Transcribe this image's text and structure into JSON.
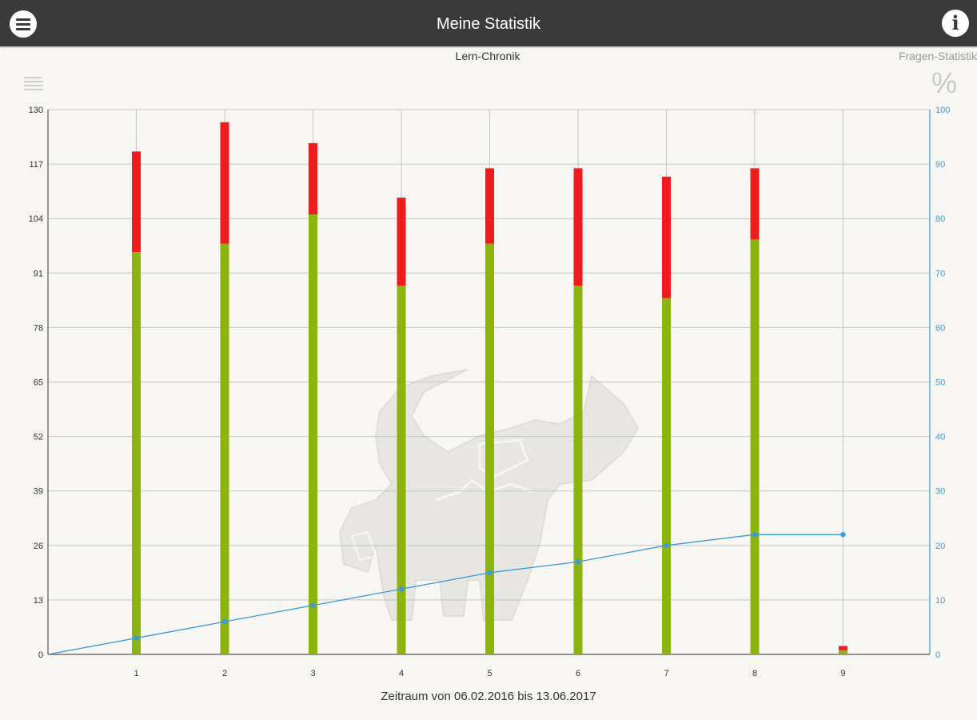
{
  "header": {
    "title": "Meine Statistik",
    "menu_icon": "hamburger-menu-icon",
    "info_icon": "info-icon",
    "info_glyph": "i"
  },
  "tabs": {
    "chronik": "Lern-Chronik",
    "fragen": "Fragen-Statistik"
  },
  "toolbar": {
    "list_icon": "list-icon",
    "percent_icon": "percent-icon",
    "percent_glyph": "%"
  },
  "chart_data": {
    "type": "bar",
    "categories": [
      "1",
      "2",
      "3",
      "4",
      "5",
      "6",
      "7",
      "8",
      "9"
    ],
    "series": [
      {
        "values": [
          96,
          98,
          105,
          88,
          98,
          88,
          85,
          99,
          1
        ],
        "color": "#8cb40f"
      },
      {
        "values": [
          24,
          29,
          17,
          21,
          18,
          28,
          29,
          17,
          1
        ],
        "color": "#ee1c1c"
      }
    ],
    "line_series": {
      "axis": "right",
      "color": "#3a9ad9",
      "values": [
        0,
        3,
        6,
        9,
        12,
        15,
        17,
        20,
        22,
        22
      ]
    },
    "ylim": [
      0,
      130
    ],
    "y_ticks": [
      0,
      13,
      26,
      39,
      52,
      65,
      78,
      91,
      104,
      117,
      130
    ],
    "y2lim": [
      0,
      100
    ],
    "y2_ticks": [
      0,
      10,
      20,
      30,
      40,
      50,
      60,
      70,
      80,
      90,
      100
    ],
    "xlabel": "Zeitraum von 06.02.2016 bis 13.06.2017",
    "grid": true,
    "background_logo": "buffalo-logo"
  }
}
